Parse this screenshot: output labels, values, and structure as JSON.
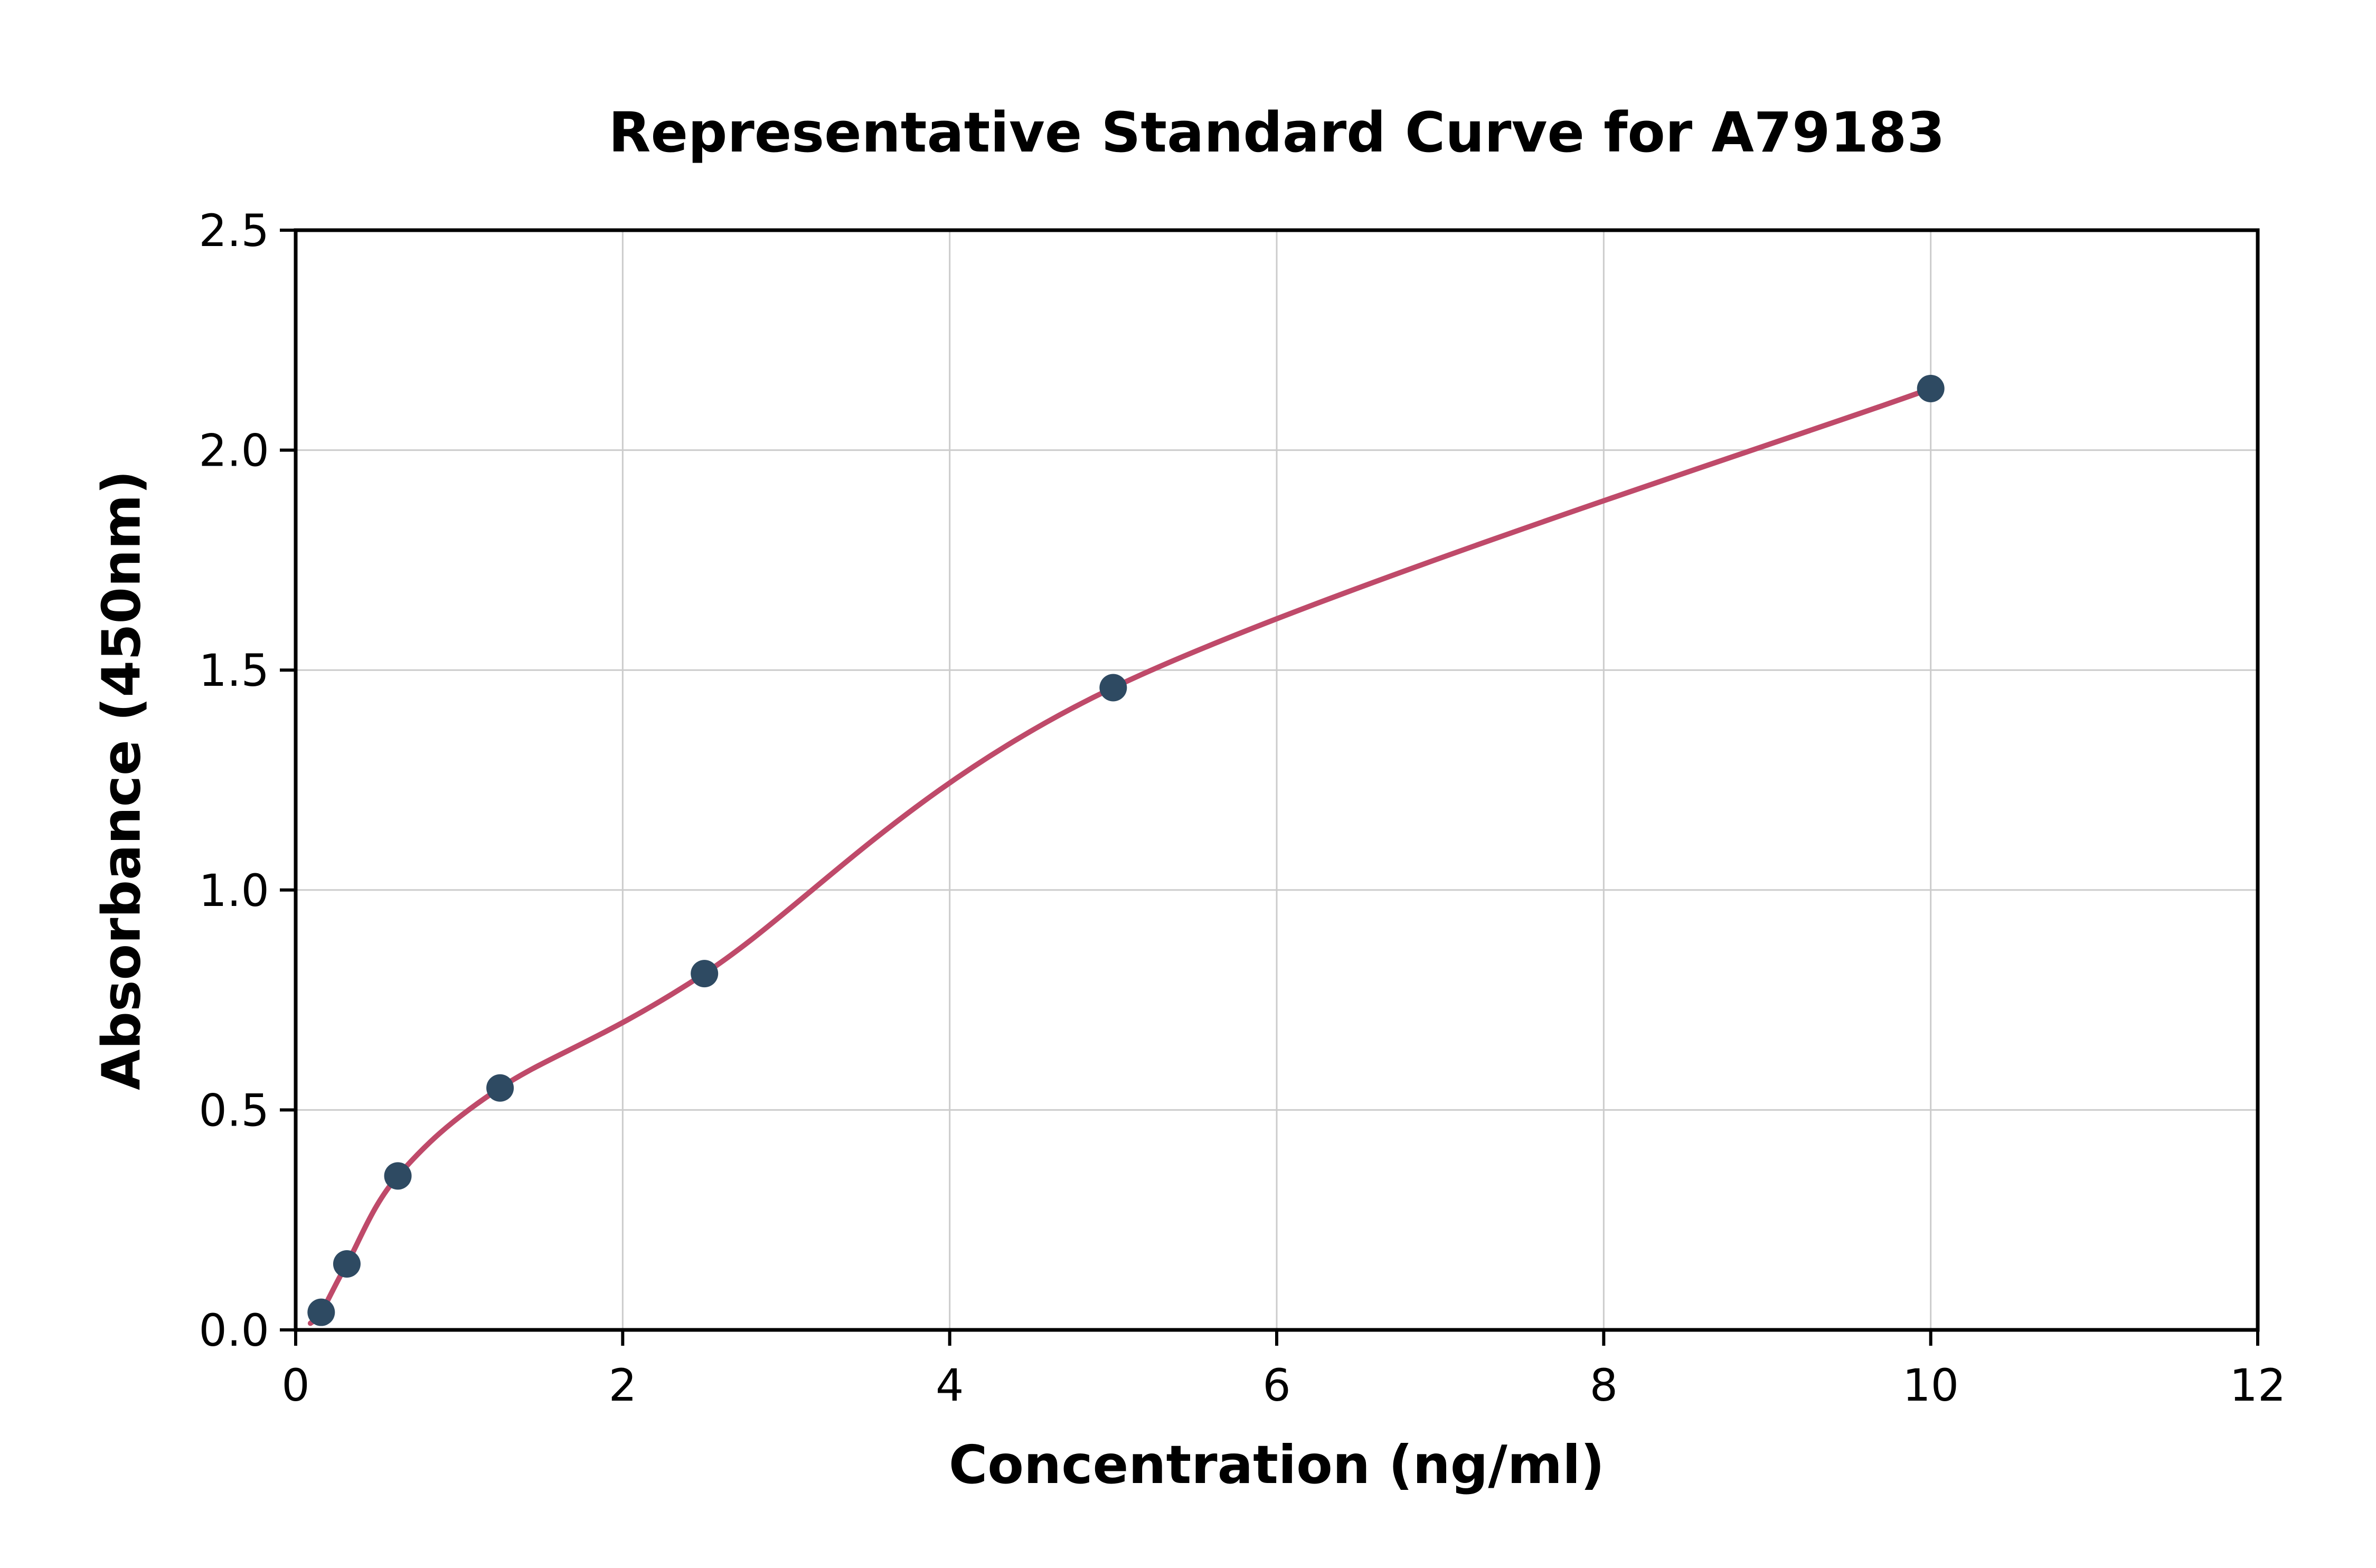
{
  "chart_data": {
    "type": "scatter",
    "title": "Representative Standard Curve for A79183",
    "xlabel": "Concentration (ng/ml)",
    "ylabel": "Absorbance (450nm)",
    "xlim": [
      0,
      12
    ],
    "ylim": [
      0,
      2.5
    ],
    "xticks": [
      0,
      2,
      4,
      6,
      8,
      10,
      12
    ],
    "xtick_labels": [
      "0",
      "2",
      "4",
      "6",
      "8",
      "10",
      "12"
    ],
    "yticks": [
      0,
      0.5,
      1,
      1.5,
      2,
      2.5
    ],
    "ytick_labels": [
      "0.0",
      "0.5",
      "1.0",
      "1.5",
      "2.0",
      "2.5"
    ],
    "grid": true,
    "legend": null,
    "series": [
      {
        "name": "standard-points",
        "type": "scatter",
        "x": [
          0.156,
          0.313,
          0.625,
          1.25,
          2.5,
          5,
          10
        ],
        "y": [
          0.04,
          0.15,
          0.35,
          0.55,
          0.81,
          1.46,
          2.14
        ],
        "color": "#2e4a62"
      },
      {
        "name": "fitted-curve",
        "type": "line",
        "x": [
          0.09,
          0.156,
          0.313,
          0.625,
          1.25,
          2.5,
          5,
          10
        ],
        "y": [
          0.015,
          0.04,
          0.15,
          0.35,
          0.55,
          0.81,
          1.46,
          2.14
        ],
        "color": "#bf4a6a"
      }
    ],
    "colors": {
      "grid": "#cccccc",
      "axis": "#000000",
      "text": "#000000",
      "background": "#ffffff"
    }
  }
}
